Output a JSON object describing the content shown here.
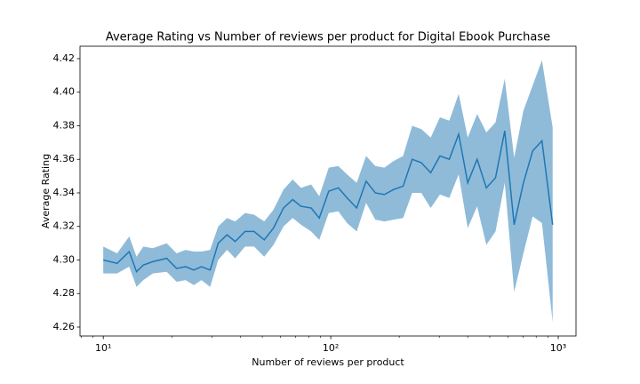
{
  "chart_data": {
    "type": "line_band",
    "title": "Average Rating vs Number of reviews per product for Digital Ebook Purchase",
    "xlabel": "Number of reviews per product",
    "ylabel": "Average Rating",
    "xscale": "log",
    "color": "#1f77b4",
    "band_opacity": 0.5,
    "x": [
      10,
      11.5,
      13,
      14,
      15,
      16.5,
      19,
      21,
      23,
      25,
      27,
      29.5,
      32,
      35,
      38,
      42,
      46,
      51,
      56,
      62,
      68,
      74,
      82,
      89,
      98,
      108,
      118,
      130,
      143,
      157,
      172,
      189,
      208,
      228,
      250,
      275,
      302,
      332,
      365,
      400,
      440,
      483,
      530,
      582,
      640,
      703,
      772,
      848,
      945
    ],
    "values": [
      4.3,
      4.298,
      4.305,
      4.293,
      4.297,
      4.299,
      4.301,
      4.295,
      4.296,
      4.294,
      4.296,
      4.294,
      4.31,
      4.315,
      4.311,
      4.317,
      4.317,
      4.312,
      4.319,
      4.331,
      4.336,
      4.332,
      4.331,
      4.325,
      4.341,
      4.343,
      4.337,
      4.331,
      4.347,
      4.34,
      4.339,
      4.342,
      4.344,
      4.36,
      4.358,
      4.352,
      4.362,
      4.36,
      4.375,
      4.346,
      4.36,
      4.343,
      4.349,
      4.377,
      4.321,
      4.346,
      4.365,
      4.371,
      4.321
    ],
    "lower": [
      4.292,
      4.292,
      4.296,
      4.284,
      4.288,
      4.292,
      4.293,
      4.287,
      4.288,
      4.285,
      4.288,
      4.284,
      4.3,
      4.306,
      4.301,
      4.308,
      4.308,
      4.302,
      4.309,
      4.32,
      4.325,
      4.321,
      4.317,
      4.312,
      4.328,
      4.329,
      4.322,
      4.317,
      4.334,
      4.324,
      4.323,
      4.324,
      4.325,
      4.34,
      4.34,
      4.331,
      4.339,
      4.337,
      4.351,
      4.319,
      4.332,
      4.309,
      4.317,
      4.346,
      4.281,
      4.304,
      4.326,
      4.322,
      4.263
    ],
    "upper": [
      4.308,
      4.304,
      4.314,
      4.302,
      4.308,
      4.307,
      4.31,
      4.304,
      4.306,
      4.305,
      4.305,
      4.306,
      4.32,
      4.325,
      4.323,
      4.328,
      4.327,
      4.323,
      4.33,
      4.342,
      4.348,
      4.343,
      4.345,
      4.338,
      4.355,
      4.356,
      4.351,
      4.346,
      4.362,
      4.356,
      4.355,
      4.359,
      4.362,
      4.38,
      4.378,
      4.373,
      4.385,
      4.383,
      4.399,
      4.373,
      4.387,
      4.376,
      4.382,
      4.408,
      4.361,
      4.389,
      4.404,
      4.419,
      4.379
    ],
    "xlim": [
      7.9,
      1197
    ],
    "ylim": [
      4.2547,
      4.4274
    ],
    "xticks": [
      {
        "value": 10,
        "label": "10¹"
      },
      {
        "value": 100,
        "label": "10²"
      },
      {
        "value": 1000,
        "label": "10³"
      }
    ],
    "xminorticks": [
      8,
      9,
      20,
      30,
      40,
      50,
      60,
      70,
      80,
      90,
      200,
      300,
      400,
      500,
      600,
      700,
      800,
      900
    ],
    "yticks": [
      4.26,
      4.28,
      {
        "value": 4.3,
        "label": "4.30"
      },
      4.32,
      4.34,
      4.36,
      4.38,
      {
        "value": 4.4,
        "label": "4.40"
      },
      4.42
    ]
  }
}
